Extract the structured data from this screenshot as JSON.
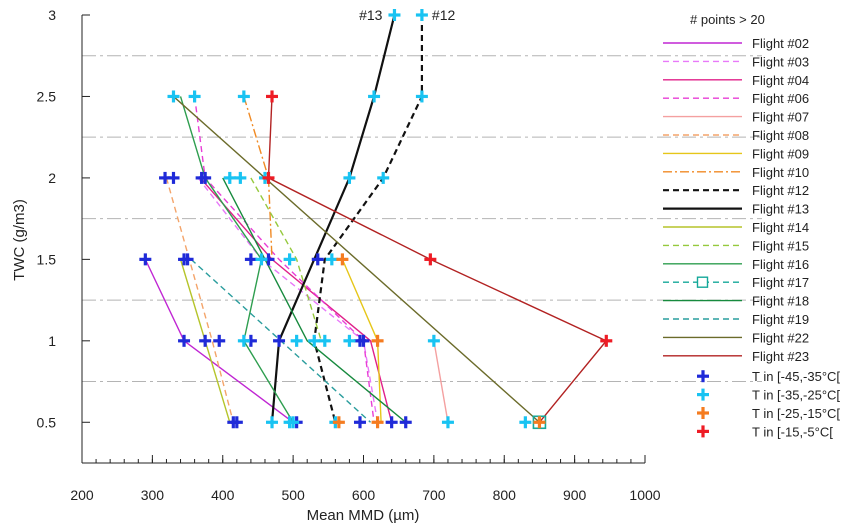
{
  "chart_data": {
    "type": "line",
    "title": "",
    "xlabel": "Mean MMD (µm)",
    "ylabel": "TWC (g/m3)",
    "xlim": [
      200,
      1000
    ],
    "ylim": [
      0.25,
      3
    ],
    "x_ticks": [
      200,
      300,
      400,
      500,
      600,
      700,
      800,
      900,
      1000
    ],
    "y_ticks": [
      0.5,
      1,
      1.5,
      2,
      2.5,
      3
    ],
    "y_tick_labels": [
      "0.5",
      "1",
      "1.5",
      "2",
      "2.5",
      "3"
    ],
    "x_minor_step": 20,
    "y_reference_lines": [
      0.75,
      1.25,
      1.75,
      2.25,
      2.75
    ],
    "grid": false,
    "legend_title": "# points > 20",
    "legend_position": "right",
    "annotations": [
      {
        "text": "#13",
        "x": 644,
        "y": 3
      },
      {
        "text": "#12",
        "x": 683,
        "y": 3
      }
    ],
    "series": [
      {
        "name": "Flight #02",
        "color": "#c026d3",
        "dash": "solid",
        "points": [
          [
            290,
            1.5
          ],
          [
            345,
            1.0
          ],
          [
            500,
            0.5
          ]
        ]
      },
      {
        "name": "Flight #03",
        "color": "#e879f9",
        "dash": "dash",
        "points": [
          [
            365,
            2.0
          ],
          [
            455,
            1.5
          ],
          [
            600,
            1.0
          ],
          [
            620,
            0.5
          ]
        ]
      },
      {
        "name": "Flight #04",
        "color": "#e0218a",
        "dash": "solid",
        "points": [
          [
            368,
            2.0
          ],
          [
            470,
            1.5
          ],
          [
            610,
            1.0
          ],
          [
            640,
            0.5
          ]
        ]
      },
      {
        "name": "Flight #06",
        "color": "#e83ed6",
        "dash": "dash",
        "points": [
          [
            360,
            2.5
          ],
          [
            375,
            2.0
          ],
          [
            480,
            1.5
          ],
          [
            600,
            1.0
          ],
          [
            615,
            0.5
          ]
        ]
      },
      {
        "name": "Flight #07",
        "color": "#f4a0a0",
        "dash": "solid",
        "points": [
          [
            700,
            1.0
          ],
          [
            720,
            0.5
          ]
        ]
      },
      {
        "name": "Flight #08",
        "color": "#f4a46a",
        "dash": "dash",
        "points": [
          [
            320,
            2.0
          ],
          [
            385,
            1.0
          ],
          [
            415,
            0.5
          ]
        ]
      },
      {
        "name": "Flight #09",
        "color": "#e6c619",
        "dash": "solid",
        "points": [
          [
            570,
            1.5
          ],
          [
            620,
            1.0
          ],
          [
            625,
            0.5
          ]
        ]
      },
      {
        "name": "Flight #10",
        "color": "#f08a24",
        "dash": "dashdot",
        "points": [
          [
            430,
            2.5
          ],
          [
            465,
            2.0
          ],
          [
            470,
            1.5
          ]
        ]
      },
      {
        "name": "Flight #12",
        "color": "#111111",
        "dash": "dash",
        "points": [
          [
            683,
            3.0
          ],
          [
            683,
            2.5
          ],
          [
            628,
            2.0
          ],
          [
            545,
            1.5
          ],
          [
            530,
            1.0
          ],
          [
            560,
            0.5
          ]
        ]
      },
      {
        "name": "Flight #13",
        "color": "#111111",
        "dash": "solid",
        "points": [
          [
            644,
            3.0
          ],
          [
            615,
            2.5
          ],
          [
            580,
            2.0
          ],
          [
            530,
            1.5
          ],
          [
            480,
            1.0
          ],
          [
            470,
            0.5
          ]
        ]
      },
      {
        "name": "Flight #14",
        "color": "#b5c42a",
        "dash": "solid",
        "points": [
          [
            340,
            1.5
          ],
          [
            410,
            0.5
          ]
        ]
      },
      {
        "name": "Flight #15",
        "color": "#95c93d",
        "dash": "dash",
        "points": [
          [
            440,
            2.0
          ],
          [
            505,
            1.5
          ],
          [
            540,
            1.0
          ]
        ]
      },
      {
        "name": "Flight #16",
        "color": "#2e9e4f",
        "dash": "solid",
        "points": [
          [
            340,
            2.5
          ],
          [
            375,
            2.0
          ],
          [
            455,
            1.5
          ],
          [
            430,
            1.0
          ],
          [
            500,
            0.5
          ]
        ]
      },
      {
        "name": "Flight #17",
        "color": "#14a89a",
        "dash": "dash",
        "marker": "square",
        "points": [
          [
            850,
            0.5
          ]
        ]
      },
      {
        "name": "Flight #18",
        "color": "#178a3e",
        "dash": "solid",
        "points": [
          [
            400,
            2.0
          ],
          [
            460,
            1.5
          ],
          [
            520,
            1.0
          ],
          [
            660,
            0.5
          ]
        ]
      },
      {
        "name": "Flight #19",
        "color": "#2a9d9d",
        "dash": "dash",
        "points": [
          [
            355,
            1.5
          ],
          [
            610,
            0.5
          ]
        ]
      },
      {
        "name": "Flight #22",
        "color": "#6b6b2a",
        "dash": "solid",
        "points": [
          [
            330,
            2.5
          ],
          [
            850,
            0.5
          ]
        ]
      },
      {
        "name": "Flight #23",
        "color": "#b22222",
        "dash": "solid",
        "points": [
          [
            470,
            2.5
          ],
          [
            465,
            2.0
          ],
          [
            695,
            1.5
          ],
          [
            945,
            1.0
          ],
          [
            850,
            0.5
          ]
        ]
      }
    ],
    "markers": [
      {
        "name": "T in [-45,-35°C[",
        "color": "#1f2ad8",
        "points": [
          [
            290,
            1.5
          ],
          [
            318,
            2.0
          ],
          [
            330,
            2.0
          ],
          [
            345,
            1.5
          ],
          [
            350,
            1.5
          ],
          [
            345,
            1.0
          ],
          [
            370,
            2.0
          ],
          [
            375,
            2.0
          ],
          [
            375,
            1.0
          ],
          [
            395,
            1.0
          ],
          [
            440,
            1.5
          ],
          [
            440,
            1.0
          ],
          [
            465,
            1.5
          ],
          [
            480,
            1.0
          ],
          [
            415,
            0.5
          ],
          [
            420,
            0.5
          ],
          [
            505,
            0.5
          ],
          [
            535,
            1.5
          ],
          [
            595,
            1.0
          ],
          [
            600,
            1.0
          ],
          [
            595,
            0.5
          ],
          [
            640,
            0.5
          ],
          [
            660,
            0.5
          ]
        ]
      },
      {
        "name": "T in [-35,-25°C[",
        "color": "#19c3f2",
        "points": [
          [
            644,
            3.0
          ],
          [
            683,
            3.0
          ],
          [
            330,
            2.5
          ],
          [
            360,
            2.5
          ],
          [
            430,
            2.5
          ],
          [
            615,
            2.5
          ],
          [
            683,
            2.5
          ],
          [
            410,
            2.0
          ],
          [
            425,
            2.0
          ],
          [
            460,
            2.0
          ],
          [
            580,
            2.0
          ],
          [
            628,
            2.0
          ],
          [
            455,
            1.5
          ],
          [
            495,
            1.5
          ],
          [
            555,
            1.5
          ],
          [
            430,
            1.0
          ],
          [
            505,
            1.0
          ],
          [
            530,
            1.0
          ],
          [
            545,
            1.0
          ],
          [
            580,
            1.0
          ],
          [
            700,
            1.0
          ],
          [
            470,
            0.5
          ],
          [
            495,
            0.5
          ],
          [
            500,
            0.5
          ],
          [
            560,
            0.5
          ],
          [
            720,
            0.5
          ],
          [
            830,
            0.5
          ]
        ]
      },
      {
        "name": "T in [-25,-15°C[",
        "color": "#f57c20",
        "points": [
          [
            570,
            1.5
          ],
          [
            620,
            1.0
          ],
          [
            565,
            0.5
          ],
          [
            620,
            0.5
          ],
          [
            850,
            0.5
          ]
        ]
      },
      {
        "name": "T in [-15,-5°C[",
        "color": "#ee1c25",
        "points": [
          [
            470,
            2.5
          ],
          [
            465,
            2.0
          ],
          [
            695,
            1.5
          ],
          [
            945,
            1.0
          ]
        ]
      }
    ]
  }
}
